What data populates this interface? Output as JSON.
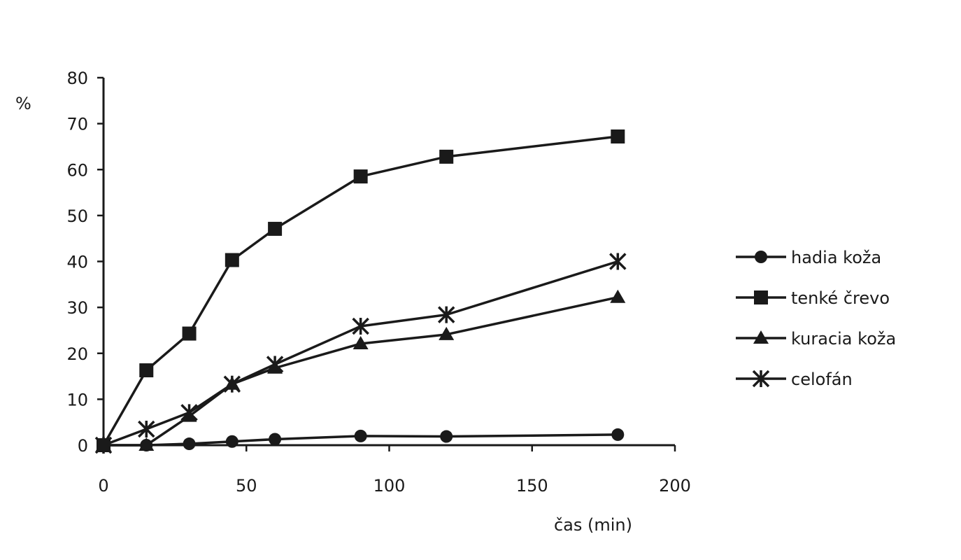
{
  "chart_data": {
    "type": "line",
    "xlabel": "čas (min)",
    "ylabel": "%",
    "xlim": [
      0,
      200
    ],
    "ylim": [
      0,
      80
    ],
    "xticks": [
      0,
      50,
      100,
      150,
      200
    ],
    "yticks": [
      0,
      10,
      20,
      30,
      40,
      50,
      60,
      70,
      80
    ],
    "grid": false,
    "legend_position": "right",
    "line_color": "#1a1a1a",
    "series": [
      {
        "name": "hadia koža",
        "marker": "circle",
        "x": [
          0,
          15,
          30,
          45,
          60,
          90,
          120,
          180
        ],
        "y": [
          0,
          0,
          0.3,
          0.8,
          1.3,
          2.0,
          1.9,
          2.3
        ]
      },
      {
        "name": "tenké črevo",
        "marker": "square",
        "x": [
          0,
          15,
          30,
          45,
          60,
          90,
          120,
          180
        ],
        "y": [
          0,
          16.3,
          24.3,
          40.3,
          47.1,
          58.5,
          62.8,
          67.2
        ]
      },
      {
        "name": "kuracia koža",
        "marker": "triangle",
        "x": [
          0,
          15,
          30,
          45,
          60,
          90,
          120,
          180
        ],
        "y": [
          0,
          0,
          6.3,
          13.3,
          16.8,
          22.1,
          24.1,
          32.2
        ]
      },
      {
        "name": "celofán",
        "marker": "star",
        "x": [
          0,
          15,
          30,
          45,
          60,
          90,
          120,
          180
        ],
        "y": [
          0,
          3.5,
          7.1,
          13.3,
          17.6,
          25.9,
          28.4,
          40.0
        ]
      }
    ]
  }
}
